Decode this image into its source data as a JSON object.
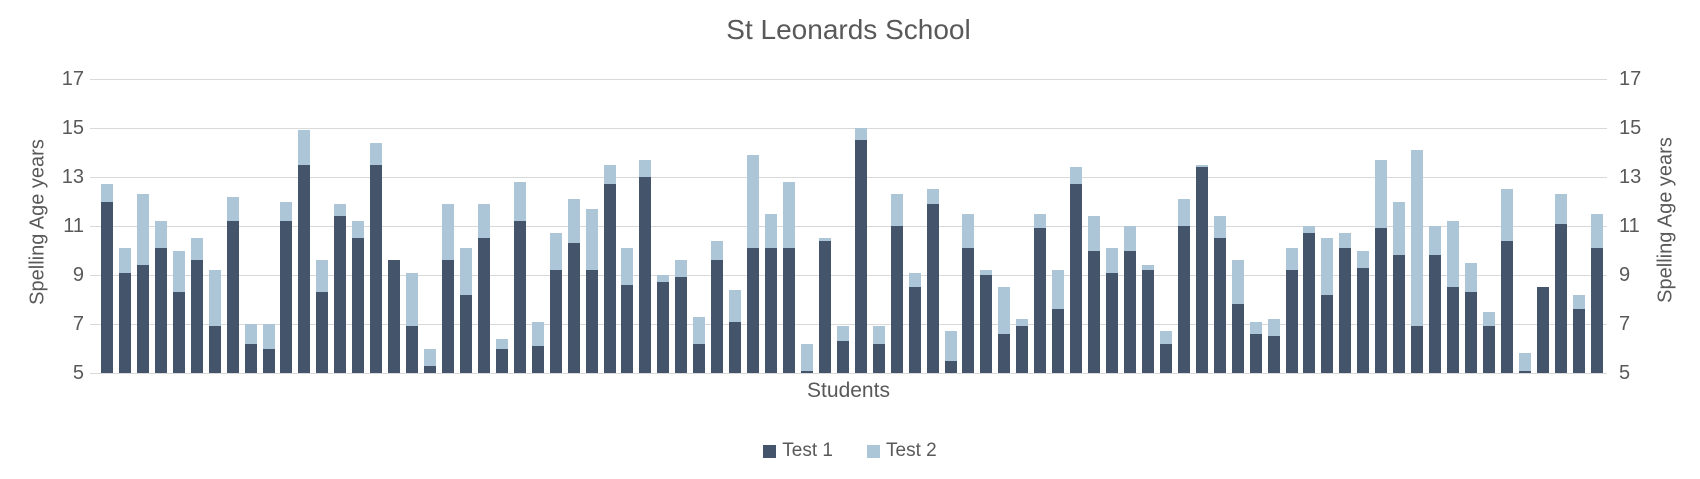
{
  "title": "St Leonards School",
  "x_axis": {
    "title": "Students"
  },
  "y_axis": {
    "left_title": "Spelling Age years",
    "right_title": "Spelling Age years"
  },
  "legend": [
    {
      "label": "Test 1",
      "color": "#44546a"
    },
    {
      "label": "Test 2",
      "color": "#adc6d7"
    }
  ],
  "colors": {
    "test1": "#44546a",
    "test2": "#adc6d7",
    "gridline": "#d9d9d9",
    "text": "#595959"
  },
  "chart_data": {
    "type": "bar",
    "stacked": true,
    "title": "St Leonards School",
    "xlabel": "Students",
    "ylabel": "Spelling Age years",
    "ylim": [
      5,
      17
    ],
    "yticks": [
      5,
      7,
      9,
      11,
      13,
      15,
      17
    ],
    "grid": true,
    "legend_position": "bottom",
    "note": "Bars rise from baseline 5; dark segment = Test 1 spelling age, light segment tops out at Test 2 spelling age",
    "series": [
      {
        "name": "Test 1",
        "values": [
          12.0,
          9.1,
          9.4,
          10.1,
          8.3,
          9.6,
          6.9,
          11.2,
          6.2,
          6.0,
          11.2,
          13.5,
          8.3,
          11.4,
          10.5,
          13.5,
          9.6,
          6.9,
          5.3,
          9.6,
          8.2,
          10.5,
          6.0,
          11.2,
          6.1,
          9.2,
          10.3,
          9.2,
          12.7,
          8.6,
          13.0,
          8.7,
          8.9,
          6.2,
          9.6,
          7.1,
          10.1,
          10.1,
          10.1,
          5.1,
          10.4,
          6.3,
          14.5,
          6.2,
          11.0,
          8.5,
          11.9,
          5.5,
          10.1,
          9.0,
          6.6,
          6.9,
          10.9,
          7.6,
          12.7,
          10.0,
          9.1,
          10.0,
          9.2,
          6.2,
          11.0,
          13.4,
          10.5,
          7.8,
          6.6,
          6.5,
          9.2,
          10.7,
          8.2,
          10.1,
          9.3,
          10.9,
          9.8,
          6.9,
          9.8,
          8.5,
          8.3,
          6.9,
          10.4,
          5.1,
          8.5,
          11.1,
          7.6,
          10.1
        ]
      },
      {
        "name": "Test 2",
        "values": [
          12.7,
          10.1,
          12.3,
          11.2,
          10.0,
          10.5,
          9.2,
          12.2,
          7.0,
          7.0,
          12.0,
          14.9,
          9.6,
          11.9,
          11.2,
          14.4,
          9.6,
          9.1,
          6.0,
          11.9,
          10.1,
          11.9,
          6.4,
          12.8,
          7.1,
          10.7,
          12.1,
          11.7,
          13.5,
          10.1,
          13.7,
          9.0,
          9.6,
          7.3,
          10.4,
          8.4,
          13.9,
          11.5,
          12.8,
          6.2,
          10.5,
          6.9,
          15.0,
          6.9,
          12.3,
          9.1,
          12.5,
          6.7,
          11.5,
          9.2,
          8.5,
          7.2,
          11.5,
          9.2,
          13.4,
          11.4,
          10.1,
          11.0,
          9.4,
          6.7,
          12.1,
          13.5,
          11.4,
          9.6,
          7.1,
          7.2,
          10.1,
          11.0,
          10.5,
          10.7,
          10.0,
          13.7,
          12.0,
          14.1,
          11.0,
          11.2,
          9.5,
          7.5,
          12.5,
          5.8,
          8.5,
          12.3,
          8.2,
          11.5
        ]
      }
    ]
  }
}
